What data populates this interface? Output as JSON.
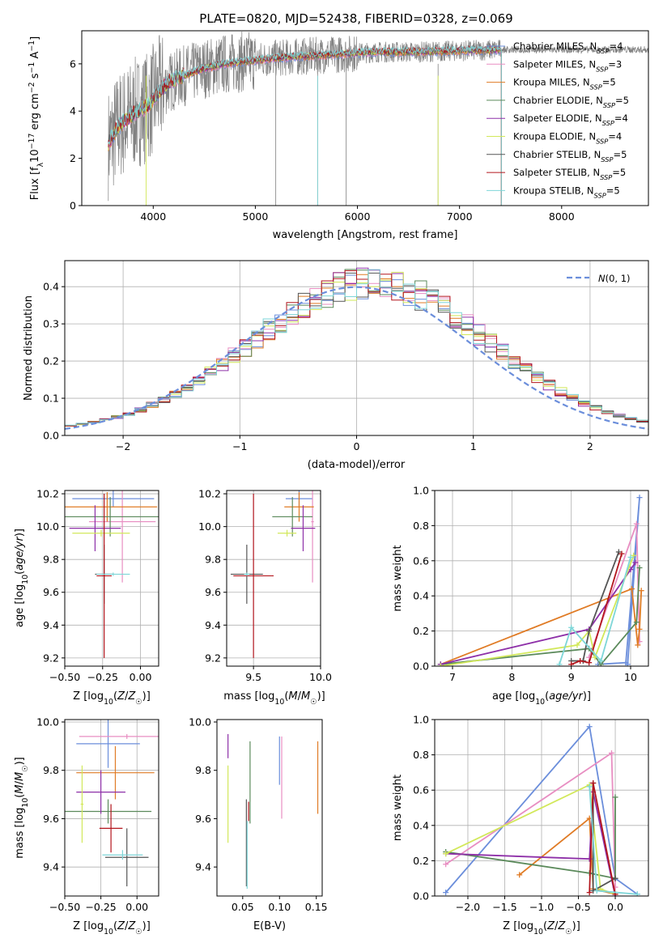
{
  "title": "PLATE=0820, MJD=52438, FIBERID=0328, z=0.069",
  "colors": {
    "Chabrier MILES": "#6b8edb",
    "Salpeter MILES": "#e88ec2",
    "Kroupa MILES": "#e07b25",
    "Chabrier ELODIE": "#5b8a5b",
    "Salpeter ELODIE": "#8e30a8",
    "Kroupa ELODIE": "#d2e85a",
    "Chabrier STELIB": "#555555",
    "Salpeter STELIB": "#b3161d",
    "Kroupa STELIB": "#7ed6d8",
    "data": "#808080",
    "grid": "#b0b0b0"
  },
  "legend": [
    {
      "model": "Chabrier MILES",
      "prefix": "Chabrier MILES, N",
      "sub": "SSP",
      "suffix": "=4"
    },
    {
      "model": "Salpeter MILES",
      "prefix": "Salpeter MILES, N",
      "sub": "SSP",
      "suffix": "=3"
    },
    {
      "model": "Kroupa MILES",
      "prefix": "Kroupa MILES, N",
      "sub": "SSP",
      "suffix": "=5"
    },
    {
      "model": "Chabrier ELODIE",
      "prefix": "Chabrier ELODIE, N",
      "sub": "SSP",
      "suffix": "=5"
    },
    {
      "model": "Salpeter ELODIE",
      "prefix": "Salpeter ELODIE, N",
      "sub": "SSP",
      "suffix": "=4"
    },
    {
      "model": "Kroupa ELODIE",
      "prefix": "Kroupa ELODIE, N",
      "sub": "SSP",
      "suffix": "=4"
    },
    {
      "model": "Chabrier STELIB",
      "prefix": "Chabrier STELIB, N",
      "sub": "SSP",
      "suffix": "=5"
    },
    {
      "model": "Salpeter STELIB",
      "prefix": "Salpeter STELIB, N",
      "sub": "SSP",
      "suffix": "=5"
    },
    {
      "model": "Kroupa STELIB",
      "prefix": "Kroupa STELIB, N",
      "sub": "SSP",
      "suffix": "=5"
    }
  ],
  "chart_data": [
    {
      "id": "spectrum",
      "type": "line",
      "xlabel": "wavelength [Angstrom, rest frame]",
      "ylabel": "Flux [f_λ 10^-17 erg cm^-2 s^-1 A^-1]",
      "xlim": [
        3300,
        8850
      ],
      "ylim": [
        0,
        7.4
      ],
      "xticks": [
        4000,
        5000,
        6000,
        7000,
        8000
      ],
      "yticks": [
        0,
        2,
        4,
        6
      ],
      "grid": false,
      "legend_position": "right",
      "continuum": {
        "x": [
          3560,
          3650,
          3750,
          3850,
          3950,
          4050,
          4150,
          4300,
          4500,
          4700,
          4900,
          5100,
          5400,
          5800,
          6200,
          6600,
          7000,
          7400
        ],
        "y": [
          2.6,
          3.3,
          3.7,
          4.0,
          4.2,
          4.8,
          5.2,
          5.5,
          5.8,
          6.0,
          6.1,
          6.2,
          6.3,
          6.4,
          6.5,
          6.5,
          6.55,
          6.6
        ]
      },
      "observed_range": [
        3560,
        8850
      ],
      "model_range": [
        3560,
        7410
      ]
    },
    {
      "id": "residuals",
      "type": "step",
      "xlabel": "(data-model)/error",
      "ylabel": "Normed distribution",
      "xlim": [
        -2.5,
        2.5
      ],
      "ylim": [
        0,
        0.47
      ],
      "xticks": [
        -2,
        -1,
        0,
        1,
        2
      ],
      "yticks": [
        0.0,
        0.1,
        0.2,
        0.3,
        0.4
      ],
      "grid": true,
      "legend_position": "top-right",
      "reference_curve": "N(0,1)",
      "bin_width": 0.1
    },
    {
      "id": "age-vs-Z",
      "type": "errorbar",
      "xlabel": "Z [log10(Z/Z☉)]",
      "ylabel": "age [log10(age/yr)]",
      "xlim": [
        -0.5,
        0.12
      ],
      "ylim": [
        9.15,
        10.22
      ],
      "xticks": [
        -0.5,
        -0.25,
        0.0
      ],
      "yticks": [
        9.2,
        9.4,
        9.6,
        9.8,
        10.0,
        10.2
      ],
      "grid": true,
      "series": [
        {
          "model": "Chabrier MILES",
          "x": -0.18,
          "xerr": 0.27,
          "y": 10.17,
          "yerr": 0.05
        },
        {
          "model": "Salpeter MILES",
          "x": -0.12,
          "xerr": 0.22,
          "y": 10.03,
          "yerr": 0.37
        },
        {
          "model": "Kroupa MILES",
          "x": -0.22,
          "xerr": 0.33,
          "y": 10.12,
          "yerr": 0.09
        },
        {
          "model": "Chabrier ELODIE",
          "x": -0.2,
          "xerr": 0.32,
          "y": 10.06,
          "yerr": 0.12
        },
        {
          "model": "Salpeter ELODIE",
          "x": -0.3,
          "xerr": 0.17,
          "y": 9.99,
          "yerr": 0.14
        },
        {
          "model": "Kroupa ELODIE",
          "x": -0.26,
          "xerr": 0.19,
          "y": 9.96,
          "yerr": 0.02
        },
        {
          "model": "Chabrier STELIB",
          "x": -0.24,
          "xerr": 0.06,
          "y": 9.71,
          "yerr": 0.18
        },
        {
          "model": "Salpeter STELIB",
          "x": -0.24,
          "xerr": 0.05,
          "y": 9.7,
          "yerr": 0.5
        },
        {
          "model": "Kroupa STELIB",
          "x": -0.18,
          "xerr": 0.11,
          "y": 9.71,
          "yerr": 0.01
        }
      ]
    },
    {
      "id": "age-vs-mass",
      "type": "errorbar",
      "xlabel": "mass [log10(M/M☉)]",
      "ylabel": "",
      "xlim": [
        9.3,
        10.0
      ],
      "ylim": [
        9.15,
        10.22
      ],
      "xticks": [
        9.5,
        10.0
      ],
      "yticks": [
        9.2,
        9.4,
        9.6,
        9.8,
        10.0,
        10.2
      ],
      "grid": true,
      "series": [
        {
          "model": "Chabrier MILES",
          "x": 9.84,
          "xerr": 0.1,
          "y": 10.17,
          "yerr": 0.05
        },
        {
          "model": "Salpeter MILES",
          "x": 9.94,
          "xerr": 0.01,
          "y": 10.03,
          "yerr": 0.37
        },
        {
          "model": "Kroupa MILES",
          "x": 9.84,
          "xerr": 0.11,
          "y": 10.12,
          "yerr": 0.09
        },
        {
          "model": "Chabrier ELODIE",
          "x": 9.79,
          "xerr": 0.15,
          "y": 10.06,
          "yerr": 0.12
        },
        {
          "model": "Salpeter ELODIE",
          "x": 9.87,
          "xerr": 0.09,
          "y": 9.99,
          "yerr": 0.14
        },
        {
          "model": "Kroupa ELODIE",
          "x": 9.75,
          "xerr": 0.07,
          "y": 9.96,
          "yerr": 0.02
        },
        {
          "model": "Chabrier STELIB",
          "x": 9.45,
          "xerr": 0.12,
          "y": 9.71,
          "yerr": 0.18
        },
        {
          "model": "Salpeter STELIB",
          "x": 9.5,
          "xerr": 0.15,
          "y": 9.7,
          "yerr": 0.5
        },
        {
          "model": "Kroupa STELIB",
          "x": 9.45,
          "xerr": 0.02,
          "y": 9.71,
          "yerr": 0.01
        }
      ]
    },
    {
      "id": "weight-vs-age",
      "type": "line",
      "xlabel": "age [log10(age/yr)]",
      "ylabel": "mass weight",
      "xlim": [
        6.7,
        10.3
      ],
      "ylim": [
        0,
        1.0
      ],
      "xticks": [
        7,
        8,
        9,
        10
      ],
      "yticks": [
        0.0,
        0.2,
        0.4,
        0.6,
        0.8,
        1.0
      ],
      "grid": true,
      "series": [
        {
          "model": "Chabrier MILES",
          "x": [
            9.45,
            9.92,
            10.15,
            9.95
          ],
          "y": [
            0.01,
            0.02,
            0.96,
            0.01
          ]
        },
        {
          "model": "Salpeter MILES",
          "x": [
            9.3,
            10.1,
            10.15
          ],
          "y": [
            0.05,
            0.81,
            0.14
          ]
        },
        {
          "model": "Kroupa MILES",
          "x": [
            6.8,
            10.02,
            10.12,
            10.15,
            10.18
          ],
          "y": [
            0.01,
            0.44,
            0.12,
            0.21,
            0.43
          ]
        },
        {
          "model": "Chabrier ELODIE",
          "x": [
            6.8,
            9.3,
            9.5,
            10.1,
            10.15
          ],
          "y": [
            0.01,
            0.1,
            0.01,
            0.25,
            0.56
          ]
        },
        {
          "model": "Salpeter ELODIE",
          "x": [
            6.8,
            9.3,
            10.0,
            10.08
          ],
          "y": [
            0.01,
            0.21,
            0.55,
            0.59
          ]
        },
        {
          "model": "Kroupa ELODIE",
          "x": [
            6.8,
            9.1,
            9.3,
            9.4,
            10.05
          ],
          "y": [
            0.0,
            0.12,
            0.2,
            0.05,
            0.63
          ]
        },
        {
          "model": "Chabrier STELIB",
          "x": [
            9.0,
            9.2,
            9.3,
            9.8
          ],
          "y": [
            0.03,
            0.03,
            0.2,
            0.65
          ]
        },
        {
          "model": "Salpeter STELIB",
          "x": [
            9.0,
            9.15,
            9.3,
            9.85
          ],
          "y": [
            0.01,
            0.03,
            0.02,
            0.64
          ]
        },
        {
          "model": "Kroupa STELIB",
          "x": [
            8.8,
            9.0,
            9.5,
            10.0
          ],
          "y": [
            0.01,
            0.22,
            0.03,
            0.62
          ]
        }
      ]
    },
    {
      "id": "mass-vs-Z",
      "type": "errorbar",
      "xlabel": "Z [log10(Z/Z☉)]",
      "ylabel": "mass [log10(M/M☉)]",
      "xlim": [
        -0.5,
        0.15
      ],
      "ylim": [
        9.28,
        10.01
      ],
      "xticks": [
        -0.5,
        -0.25,
        0.0
      ],
      "yticks": [
        9.4,
        9.6,
        9.8,
        10.0
      ],
      "grid": true,
      "series": [
        {
          "model": "Chabrier MILES",
          "x": -0.2,
          "xerr": 0.22,
          "y": 9.91,
          "yerr": 0.1
        },
        {
          "model": "Salpeter MILES",
          "x": -0.07,
          "xerr": 0.33,
          "y": 9.94,
          "yerr": 0.01
        },
        {
          "model": "Kroupa MILES",
          "x": -0.15,
          "xerr": 0.27,
          "y": 9.79,
          "yerr": 0.11
        },
        {
          "model": "Chabrier ELODIE",
          "x": -0.2,
          "xerr": 0.3,
          "y": 9.63,
          "yerr": 0.05
        },
        {
          "model": "Salpeter ELODIE",
          "x": -0.25,
          "xerr": 0.17,
          "y": 9.71,
          "yerr": 0.09
        },
        {
          "model": "Kroupa ELODIE",
          "x": -0.38,
          "xerr": 0.01,
          "y": 9.66,
          "yerr": 0.16
        },
        {
          "model": "Chabrier STELIB",
          "x": -0.07,
          "xerr": 0.15,
          "y": 9.44,
          "yerr": 0.12
        },
        {
          "model": "Salpeter STELIB",
          "x": -0.18,
          "xerr": 0.08,
          "y": 9.56,
          "yerr": 0.1
        },
        {
          "model": "Kroupa STELIB",
          "x": -0.1,
          "xerr": 0.14,
          "y": 9.45,
          "yerr": 0.02
        }
      ]
    },
    {
      "id": "mass-vs-EBV",
      "type": "errorbar",
      "xlabel": "E(B-V)",
      "ylabel": "",
      "xlim": [
        0.015,
        0.158
      ],
      "ylim": [
        9.28,
        10.01
      ],
      "xticks": [
        0.05,
        0.1,
        0.15
      ],
      "yticks": [
        9.4,
        9.6,
        9.8,
        10.0
      ],
      "grid": false,
      "series": [
        {
          "model": "Chabrier MILES",
          "x": 0.1,
          "y": 9.84,
          "yerr": 0.1
        },
        {
          "model": "Salpeter MILES",
          "x": 0.103,
          "y": 9.77,
          "yerr": 0.17
        },
        {
          "model": "Kroupa MILES",
          "x": 0.152,
          "y": 9.77,
          "yerr": 0.15
        },
        {
          "model": "Chabrier ELODIE",
          "x": 0.06,
          "y": 9.75,
          "yerr": 0.17
        },
        {
          "model": "Salpeter ELODIE",
          "x": 0.03,
          "y": 9.9,
          "yerr": 0.05
        },
        {
          "model": "Kroupa ELODIE",
          "x": 0.03,
          "y": 9.66,
          "yerr": 0.16
        },
        {
          "model": "Chabrier STELIB",
          "x": 0.055,
          "y": 9.5,
          "yerr": 0.18
        },
        {
          "model": "Salpeter STELIB",
          "x": 0.058,
          "y": 9.63,
          "yerr": 0.04
        },
        {
          "model": "Kroupa STELIB",
          "x": 0.056,
          "y": 9.45,
          "yerr": 0.14
        }
      ]
    },
    {
      "id": "weight-vs-Z",
      "type": "line",
      "xlabel": "Z [log10(Z/Z☉)]",
      "ylabel": "mass weight",
      "xlim": [
        -2.45,
        0.45
      ],
      "ylim": [
        0,
        1.0
      ],
      "xticks": [
        -2.0,
        -1.5,
        -1.0,
        -0.5,
        0.0
      ],
      "yticks": [
        0.0,
        0.2,
        0.4,
        0.6,
        0.8,
        1.0
      ],
      "grid": true,
      "series": [
        {
          "model": "Chabrier MILES",
          "x": [
            -2.3,
            -0.35,
            0.0,
            0.3
          ],
          "y": [
            0.02,
            0.96,
            0.1,
            0.01
          ]
        },
        {
          "model": "Salpeter MILES",
          "x": [
            -2.3,
            -0.05,
            0.0
          ],
          "y": [
            0.18,
            0.81,
            0.05
          ]
        },
        {
          "model": "Kroupa MILES",
          "x": [
            -1.3,
            -0.35,
            -0.3,
            0.0
          ],
          "y": [
            0.12,
            0.44,
            0.04,
            0.01
          ]
        },
        {
          "model": "Chabrier ELODIE",
          "x": [
            -2.3,
            -0.35,
            0.0,
            0.0
          ],
          "y": [
            0.25,
            0.13,
            0.1,
            0.56
          ]
        },
        {
          "model": "Salpeter ELODIE",
          "x": [
            -2.3,
            -0.35,
            -0.3,
            0.0
          ],
          "y": [
            0.24,
            0.21,
            0.59,
            0.0
          ]
        },
        {
          "model": "Kroupa ELODIE",
          "x": [
            -2.3,
            -0.35,
            -0.2,
            0.0
          ],
          "y": [
            0.24,
            0.63,
            0.04,
            0.01
          ]
        },
        {
          "model": "Chabrier STELIB",
          "x": [
            -0.3,
            -0.3,
            0.0
          ],
          "y": [
            0.64,
            0.03,
            0.1
          ]
        },
        {
          "model": "Salpeter STELIB",
          "x": [
            -0.35,
            -0.3,
            0.0
          ],
          "y": [
            0.02,
            0.64,
            0.01
          ]
        },
        {
          "model": "Kroupa STELIB",
          "x": [
            -0.35,
            -0.25,
            0.3
          ],
          "y": [
            0.62,
            0.03,
            0.01
          ]
        }
      ]
    }
  ]
}
